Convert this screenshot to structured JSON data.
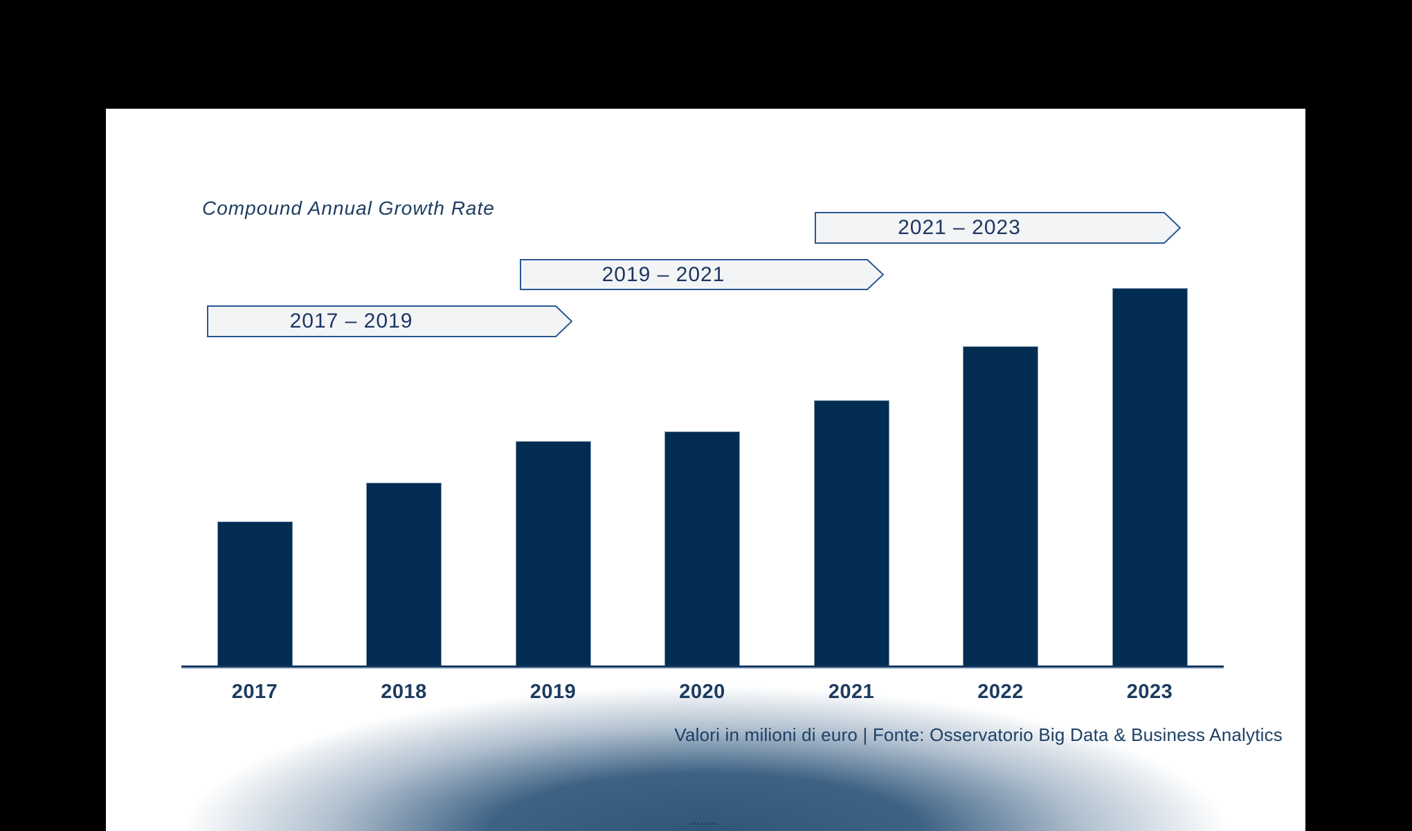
{
  "window": {
    "background": "#000000"
  },
  "slide": {
    "background": "#ffffff"
  },
  "title": {
    "text": "Compound Annual Growth Rate",
    "color": "#1e3d60"
  },
  "cagr_banners": [
    {
      "label": "2017 – 2019"
    },
    {
      "label": "2019 – 2021"
    },
    {
      "label": "2021 – 2023"
    }
  ],
  "chart_data": {
    "type": "bar",
    "title": "Compound Annual Growth Rate",
    "categories": [
      "2017",
      "2018",
      "2019",
      "2020",
      "2021",
      "2022",
      "2023"
    ],
    "values": [
      38.5,
      48.7,
      59.7,
      62.2,
      70.4,
      84.7,
      100
    ],
    "values_note": "No y-axis, gridlines or data labels are shown in the figure; values are relative bar heights with the tallest bar (2023) = 100",
    "xlabel": "",
    "ylabel": "",
    "ylim": [
      0,
      100
    ],
    "grid": false,
    "legend": false,
    "bar_color": "#032c52",
    "annotations": [
      {
        "text": "2017 – 2019",
        "type": "cagr-period-arrow"
      },
      {
        "text": "2019 – 2021",
        "type": "cagr-period-arrow"
      },
      {
        "text": "2021 – 2023",
        "type": "cagr-period-arrow"
      }
    ],
    "caption": "Valori in milioni di euro | Fonte: Osservatorio Big Data & Business Analytics"
  },
  "caption": {
    "text": "Valori in milioni di euro | Fonte: Osservatorio Big Data & Business Analytics",
    "color": "#1e4066"
  },
  "colors": {
    "bar": "#032c52",
    "bar_edge": "#b6c8da",
    "axis": "#16395e",
    "axis_underline": "#b7c9dc",
    "banner_fill": "#f3f4f5",
    "banner_border": "#2a5794",
    "banner_text": "#1c3664",
    "year_label": "#1c3b60",
    "glow": "#2e5577"
  }
}
